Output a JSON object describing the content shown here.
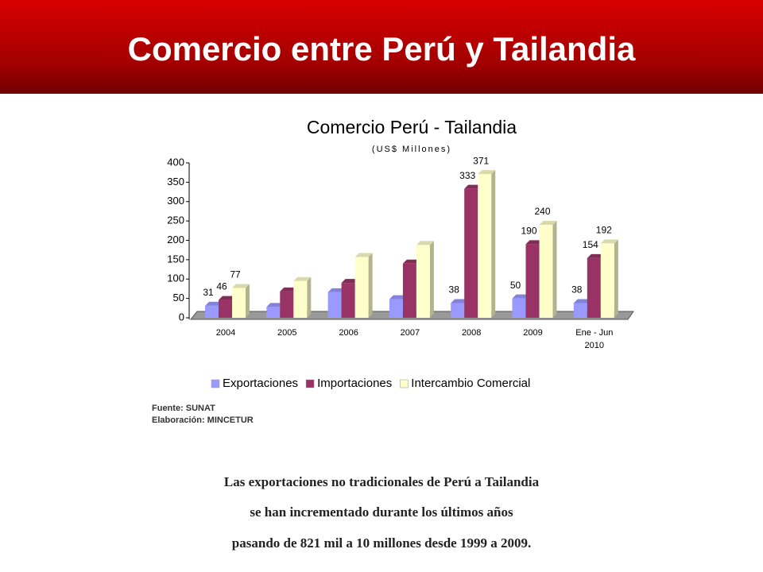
{
  "header": {
    "title": "Comercio entre Perú y Tailandia"
  },
  "chart_data": {
    "type": "bar3d",
    "title": "Comercio Perú - Tailandia",
    "subtitle": "(US$ Millones)",
    "categories": [
      "2004",
      "2005",
      "2006",
      "2007",
      "2008",
      "2009",
      "Ene - Jun 2010"
    ],
    "series": [
      {
        "name": "Exportaciones",
        "color": "#9999ff",
        "values": [
          31,
          28,
          66,
          48,
          38,
          50,
          38
        ],
        "value_labels": [
          "31",
          null,
          null,
          null,
          "38",
          "50",
          "38"
        ]
      },
      {
        "name": "Importaciones",
        "color": "#993366",
        "values": [
          46,
          68,
          90,
          140,
          333,
          190,
          154
        ],
        "value_labels": [
          "46",
          null,
          null,
          null,
          "333",
          "190",
          "154"
        ]
      },
      {
        "name": "Intercambio Comercial",
        "color": "#ffffcc",
        "values": [
          77,
          95,
          157,
          188,
          371,
          240,
          192
        ],
        "value_labels": [
          "77",
          null,
          null,
          null,
          "371",
          "240",
          "192"
        ]
      }
    ],
    "ylim": [
      0,
      400
    ],
    "yticks": [
      0,
      50,
      100,
      150,
      200,
      250,
      300,
      350,
      400
    ]
  },
  "source": [
    "Fuente: SUNAT",
    "Elaboración: MINCETUR"
  ],
  "body": [
    "Las exportaciones no tradicionales de Perú a Tailandia",
    "se han incrementado durante los últimos años",
    "pasando de 821 mil a 10 millones desde 1999 a 2009."
  ]
}
